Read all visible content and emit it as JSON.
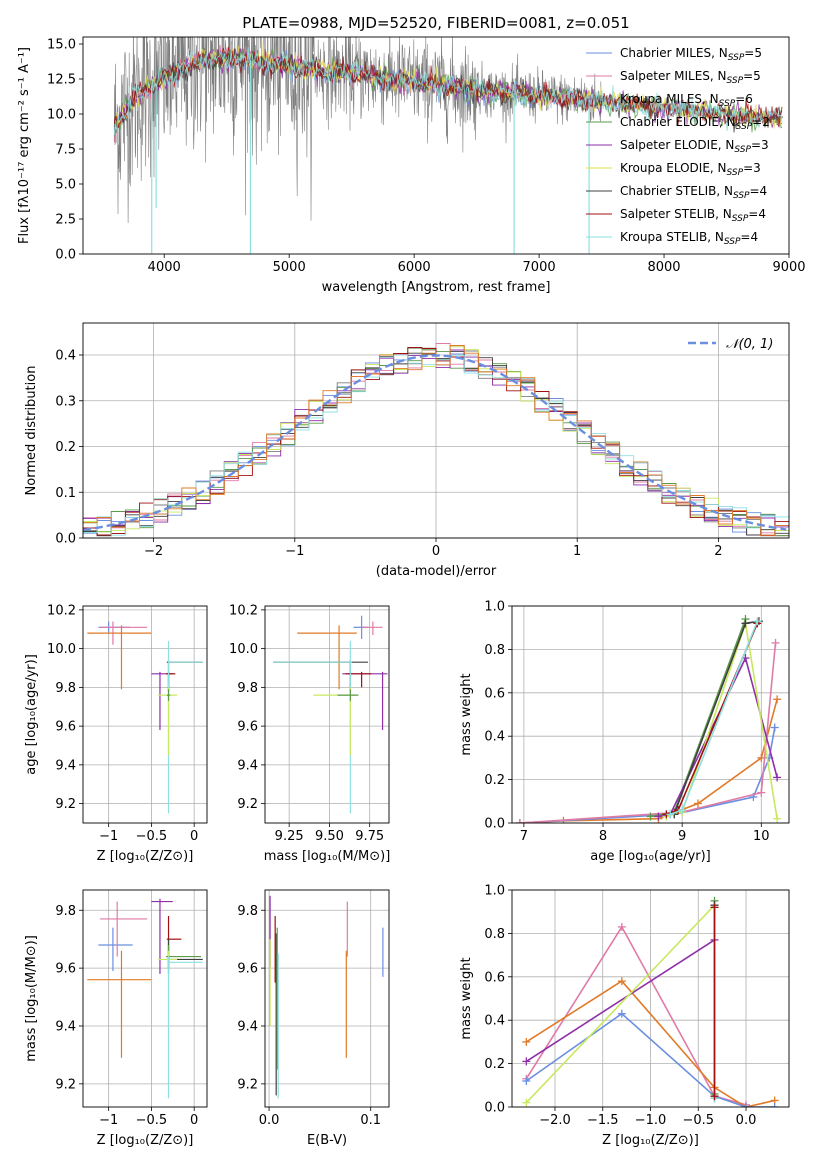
{
  "figure": {
    "title": "PLATE=0988, MJD=52520, FIBERID=0081, z=0.051"
  },
  "colors": {
    "Chabrier MILES": "#6a8fe0",
    "Salpeter MILES": "#e07aa6",
    "Kroupa MILES": "#7e7e7e",
    "Chabrier ELODIE": "#5a9a4a",
    "Salpeter ELODIE": "#8e2fa8",
    "Kroupa ELODIE": "#e6dc4a",
    "Chabrier STELIB": "#404040",
    "Salpeter STELIB": "#a01010",
    "Kroupa STELIB": "#8ee0e0",
    "orange": "#e07a28",
    "lime": "#c8e860"
  },
  "chart_data": [
    {
      "id": "spectrum",
      "type": "line",
      "xlabel": "wavelength [Angstrom, rest frame]",
      "ylabel": "Flux [fλ10⁻¹⁷ erg cm⁻² s⁻¹ A⁻¹]",
      "xlim": [
        3350,
        9000
      ],
      "ylim": [
        0,
        15.5
      ],
      "xticks": [
        4000,
        5000,
        6000,
        7000,
        8000,
        9000
      ],
      "yticks": [
        0.0,
        2.5,
        5.0,
        7.5,
        10.0,
        12.5,
        15.0
      ],
      "legend_position": "top-right",
      "legend": [
        {
          "label": "Chabrier MILES, N",
          "sub": "SSP",
          "tail": "=5"
        },
        {
          "label": "Salpeter MILES, N",
          "sub": "SSP",
          "tail": "=5"
        },
        {
          "label": "Kroupa MILES, N",
          "sub": "SSP",
          "tail": "=6"
        },
        {
          "label": "Chabrier ELODIE, N",
          "sub": "SSP",
          "tail": "=2"
        },
        {
          "label": "Salpeter ELODIE, N",
          "sub": "SSP",
          "tail": "=3"
        },
        {
          "label": "Kroupa ELODIE, N",
          "sub": "SSP",
          "tail": "=3"
        },
        {
          "label": "Chabrier STELIB, N",
          "sub": "SSP",
          "tail": "=4"
        },
        {
          "label": "Salpeter STELIB, N",
          "sub": "SSP",
          "tail": "=4"
        },
        {
          "label": "Kroupa STELIB, N",
          "sub": "SSP",
          "tail": "=4"
        }
      ],
      "continuum": {
        "x": [
          3600,
          3700,
          3800,
          3900,
          4000,
          4100,
          4200,
          4300,
          4400,
          4500,
          4600,
          4700,
          4800,
          4900,
          5000,
          5200,
          5400,
          5600,
          5800,
          6000,
          6200,
          6400,
          6600,
          6800,
          7000,
          7200,
          7400,
          7600,
          7800,
          8000,
          8200,
          8400,
          8600,
          8800,
          8950
        ],
        "y": [
          9.0,
          10.5,
          11.5,
          12.0,
          12.5,
          13.0,
          13.4,
          13.8,
          14.0,
          14.0,
          14.0,
          13.8,
          13.7,
          13.6,
          13.5,
          13.2,
          13.0,
          12.8,
          12.5,
          12.3,
          12.0,
          11.8,
          11.6,
          11.5,
          11.3,
          11.1,
          11.0,
          10.8,
          10.6,
          10.4,
          10.3,
          10.1,
          9.9,
          9.8,
          9.6
        ]
      },
      "dips": [
        {
          "x": 3900,
          "y": 0.0
        },
        {
          "x": 3935,
          "y": 3.3
        },
        {
          "x": 4690,
          "y": 0.0
        },
        {
          "x": 6800,
          "y": 0.0
        },
        {
          "x": 7400,
          "y": 0.0
        }
      ]
    },
    {
      "id": "residuals",
      "type": "line",
      "xlabel": "(data-model)/error",
      "ylabel": "Normed distribution",
      "xlim": [
        -2.5,
        2.5
      ],
      "ylim": [
        0,
        0.47
      ],
      "xticks": [
        -2,
        -1,
        0,
        1,
        2
      ],
      "yticks": [
        0.0,
        0.1,
        0.2,
        0.3,
        0.4
      ],
      "legend_position": "top-right",
      "legend_label": "𝒩(0, 1)",
      "gaussian": {
        "mu": 0,
        "sigma": 1
      }
    },
    {
      "id": "age-vs-Z",
      "type": "scatter",
      "xlabel": "Z [log₁₀(Z/Z⊙)]",
      "ylabel": "age  [log₁₀(age/yr)]",
      "xlim": [
        -1.3,
        0.15
      ],
      "ylim": [
        9.1,
        10.22
      ],
      "xticks": [
        -1,
        -0.5,
        0
      ],
      "xticklabels": [
        "−1",
        "−0.5",
        "0"
      ],
      "yticks": [
        9.2,
        9.4,
        9.6,
        9.8,
        10.0,
        10.2
      ],
      "points": [
        {
          "c": "Chabrier MILES",
          "x": -1.0,
          "y": 10.11,
          "xlo": -1.12,
          "xhi": -0.75,
          "ylo": 10.08,
          "yhi": 10.14
        },
        {
          "c": "Salpeter MILES",
          "x": -0.95,
          "y": 10.11,
          "xlo": -1.1,
          "xhi": -0.55,
          "ylo": 10.02,
          "yhi": 10.14
        },
        {
          "c": "orange",
          "x": -0.85,
          "y": 10.08,
          "xlo": -1.25,
          "xhi": -0.5,
          "ylo": 9.79,
          "yhi": 10.12
        },
        {
          "c": "Salpeter ELODIE",
          "x": -0.4,
          "y": 9.87,
          "xlo": -0.5,
          "xhi": -0.25,
          "ylo": 9.58,
          "yhi": 9.88
        },
        {
          "c": "Chabrier STELIB",
          "x": -0.3,
          "y": 9.93,
          "xlo": -0.32,
          "xhi": 0.1,
          "ylo": 9.78,
          "yhi": 9.94
        },
        {
          "c": "Salpeter STELIB",
          "x": -0.3,
          "y": 9.87,
          "xlo": -0.33,
          "xhi": -0.22,
          "ylo": 9.78,
          "yhi": 9.88
        },
        {
          "c": "Kroupa STELIB",
          "x": -0.3,
          "y": 9.93,
          "xlo": -0.3,
          "xhi": 0.1,
          "ylo": 9.15,
          "yhi": 10.04
        },
        {
          "c": "lime",
          "x": -0.3,
          "y": 9.76,
          "xlo": -0.42,
          "xhi": -0.2,
          "ylo": 9.45,
          "yhi": 9.8
        },
        {
          "c": "Chabrier ELODIE",
          "x": -0.3,
          "y": 9.76,
          "xlo": -0.32,
          "xhi": -0.28,
          "ylo": 9.73,
          "yhi": 9.79
        }
      ]
    },
    {
      "id": "age-vs-mass",
      "type": "scatter",
      "xlabel": "mass [log₁₀(M/M⊙)]",
      "ylabel": "",
      "xlim": [
        9.1,
        9.87
      ],
      "ylim": [
        9.1,
        10.22
      ],
      "xticks": [
        9.25,
        9.5,
        9.75
      ],
      "xticklabels": [
        "9.25",
        "9.50",
        "9.75"
      ],
      "yticks": [
        9.2,
        9.4,
        9.6,
        9.8,
        10.0,
        10.2
      ],
      "points": [
        {
          "c": "Chabrier MILES",
          "x": 9.7,
          "y": 10.11,
          "xlo": 9.65,
          "xhi": 9.74,
          "ylo": 10.05,
          "yhi": 10.17
        },
        {
          "c": "Salpeter MILES",
          "x": 9.77,
          "y": 10.11,
          "xlo": 9.7,
          "xhi": 9.83,
          "ylo": 10.07,
          "yhi": 10.14
        },
        {
          "c": "orange",
          "x": 9.56,
          "y": 10.08,
          "xlo": 9.3,
          "xhi": 9.67,
          "ylo": 9.79,
          "yhi": 10.12
        },
        {
          "c": "Salpeter ELODIE",
          "x": 9.83,
          "y": 9.87,
          "xlo": 9.58,
          "xhi": 9.86,
          "ylo": 9.58,
          "yhi": 9.88
        },
        {
          "c": "Chabrier STELIB",
          "x": 9.63,
          "y": 9.93,
          "xlo": 9.15,
          "xhi": 9.74,
          "ylo": 9.78,
          "yhi": 9.94
        },
        {
          "c": "Salpeter STELIB",
          "x": 9.7,
          "y": 9.87,
          "xlo": 9.6,
          "xhi": 9.76,
          "ylo": 9.8,
          "yhi": 9.88
        },
        {
          "c": "Kroupa STELIB",
          "x": 9.63,
          "y": 9.93,
          "xlo": 9.15,
          "xhi": 9.64,
          "ylo": 9.15,
          "yhi": 10.04
        },
        {
          "c": "lime",
          "x": 9.63,
          "y": 9.76,
          "xlo": 9.4,
          "xhi": 9.66,
          "ylo": 9.45,
          "yhi": 9.8
        },
        {
          "c": "Chabrier ELODIE",
          "x": 9.63,
          "y": 9.76,
          "xlo": 9.55,
          "xhi": 9.68,
          "ylo": 9.73,
          "yhi": 9.79
        }
      ]
    },
    {
      "id": "weight-vs-age",
      "type": "line",
      "xlabel": "age  [log₁₀(age/yr)]",
      "ylabel": "mass weight",
      "xlim": [
        6.85,
        10.35
      ],
      "ylim": [
        0,
        1.0
      ],
      "xticks": [
        7,
        8,
        9,
        10
      ],
      "yticks": [
        0.0,
        0.2,
        0.4,
        0.6,
        0.8,
        1.0
      ],
      "series": [
        {
          "c": "orange",
          "x": [
            6.95,
            7.5,
            8.7,
            9.2,
            10.0,
            10.2
          ],
          "y": [
            0.0,
            0.01,
            0.02,
            0.09,
            0.3,
            0.57
          ]
        },
        {
          "c": "Chabrier MILES",
          "x": [
            6.95,
            8.9,
            9.9,
            10.1,
            10.17
          ],
          "y": [
            0.0,
            0.04,
            0.12,
            0.3,
            0.44
          ]
        },
        {
          "c": "Salpeter MILES",
          "x": [
            6.95,
            9.0,
            10.0,
            10.18
          ],
          "y": [
            0.0,
            0.05,
            0.14,
            0.83
          ]
        },
        {
          "c": "Chabrier ELODIE",
          "x": [
            8.6,
            8.9,
            9.8
          ],
          "y": [
            0.03,
            0.05,
            0.94
          ]
        },
        {
          "c": "Salpeter ELODIE",
          "x": [
            8.7,
            8.85,
            9.8,
            10.2
          ],
          "y": [
            0.03,
            0.04,
            0.76,
            0.21
          ]
        },
        {
          "c": "lime",
          "x": [
            8.8,
            9.0,
            9.8,
            10.2
          ],
          "y": [
            0.03,
            0.05,
            0.92,
            0.02
          ]
        },
        {
          "c": "Chabrier STELIB",
          "x": [
            8.9,
            9.8,
            9.97
          ],
          "y": [
            0.04,
            0.92,
            0.93
          ]
        },
        {
          "c": "Salpeter STELIB",
          "x": [
            8.8,
            8.95,
            9.95
          ],
          "y": [
            0.04,
            0.06,
            0.92
          ]
        },
        {
          "c": "Kroupa STELIB",
          "x": [
            8.85,
            9.0,
            9.95
          ],
          "y": [
            0.04,
            0.06,
            0.93
          ]
        }
      ]
    },
    {
      "id": "mass-vs-Z",
      "type": "scatter",
      "xlabel": "Z [log₁₀(Z/Z⊙)]",
      "ylabel": "mass [log₁₀(M/M⊙)]",
      "xlim": [
        -1.3,
        0.15
      ],
      "ylim": [
        9.12,
        9.87
      ],
      "xticks": [
        -1,
        -0.5,
        0
      ],
      "xticklabels": [
        "−1",
        "−0.5",
        "0"
      ],
      "yticks": [
        9.2,
        9.4,
        9.6,
        9.8
      ],
      "points": [
        {
          "c": "Chabrier MILES",
          "x": -0.95,
          "y": 9.68,
          "xlo": -1.12,
          "xhi": -0.72,
          "ylo": 9.59,
          "yhi": 9.74
        },
        {
          "c": "Salpeter MILES",
          "x": -0.9,
          "y": 9.77,
          "xlo": -1.1,
          "xhi": -0.55,
          "ylo": 9.64,
          "yhi": 9.83
        },
        {
          "c": "orange",
          "x": -0.85,
          "y": 9.56,
          "xlo": -1.25,
          "xhi": -0.5,
          "ylo": 9.29,
          "yhi": 9.66
        },
        {
          "c": "Salpeter ELODIE",
          "x": -0.4,
          "y": 9.83,
          "xlo": -0.5,
          "xhi": -0.25,
          "ylo": 9.58,
          "yhi": 9.84
        },
        {
          "c": "Salpeter STELIB",
          "x": -0.3,
          "y": 9.7,
          "xlo": -0.32,
          "xhi": -0.15,
          "ylo": 9.6,
          "yhi": 9.78
        },
        {
          "c": "Chabrier STELIB",
          "x": -0.3,
          "y": 9.63,
          "xlo": -0.32,
          "xhi": 0.1,
          "ylo": 9.58,
          "yhi": 9.7
        },
        {
          "c": "Chabrier ELODIE",
          "x": -0.3,
          "y": 9.64,
          "xlo": -0.33,
          "xhi": 0.08,
          "ylo": 9.6,
          "yhi": 9.68
        },
        {
          "c": "lime",
          "x": -0.3,
          "y": 9.63,
          "xlo": -0.42,
          "xhi": -0.2,
          "ylo": 9.4,
          "yhi": 9.66
        },
        {
          "c": "Kroupa STELIB",
          "x": -0.3,
          "y": 9.62,
          "xlo": -0.3,
          "xhi": 0.1,
          "ylo": 9.15,
          "yhi": 9.64
        }
      ]
    },
    {
      "id": "mass-vs-EBV",
      "type": "scatter",
      "xlabel": "E(B-V)",
      "ylabel": "",
      "xlim": [
        -0.004,
        0.118
      ],
      "ylim": [
        9.12,
        9.87
      ],
      "xticks": [
        0.0,
        0.1
      ],
      "xticklabels": [
        "0.0",
        "0.1"
      ],
      "yticks": [
        9.2,
        9.4,
        9.6,
        9.8
      ],
      "points": [
        {
          "c": "Chabrier MILES",
          "x": 0.112,
          "y": 9.66,
          "xlo": 0.112,
          "xhi": 0.112,
          "ylo": 9.57,
          "yhi": 9.74
        },
        {
          "c": "Salpeter MILES",
          "x": 0.077,
          "y": 9.73,
          "xlo": 0.077,
          "xhi": 0.077,
          "ylo": 9.64,
          "yhi": 9.83
        },
        {
          "c": "orange",
          "x": 0.076,
          "y": 9.56,
          "xlo": 0.076,
          "xhi": 0.076,
          "ylo": 9.29,
          "yhi": 9.66
        },
        {
          "c": "Salpeter ELODIE",
          "x": 0.001,
          "y": 9.83,
          "xlo": 0.001,
          "xhi": 0.001,
          "ylo": 9.6,
          "yhi": 9.85
        },
        {
          "c": "lime",
          "x": 0.001,
          "y": 9.6,
          "xlo": 0.001,
          "xhi": 0.001,
          "ylo": 9.4,
          "yhi": 9.7
        },
        {
          "c": "Salpeter STELIB",
          "x": 0.006,
          "y": 9.7,
          "xlo": 0.006,
          "xhi": 0.006,
          "ylo": 9.55,
          "yhi": 9.78
        },
        {
          "c": "Chabrier STELIB",
          "x": 0.007,
          "y": 9.6,
          "xlo": 0.007,
          "xhi": 0.007,
          "ylo": 9.16,
          "yhi": 9.72
        },
        {
          "c": "Chabrier ELODIE",
          "x": 0.008,
          "y": 9.62,
          "xlo": 0.008,
          "xhi": 0.008,
          "ylo": 9.25,
          "yhi": 9.74
        },
        {
          "c": "Kroupa STELIB",
          "x": 0.009,
          "y": 9.6,
          "xlo": 0.009,
          "xhi": 0.009,
          "ylo": 9.15,
          "yhi": 9.65
        }
      ]
    },
    {
      "id": "weight-vs-Z",
      "type": "line",
      "xlabel": "Z [log₁₀(Z/Z⊙)]",
      "ylabel": "mass weight",
      "xlim": [
        -2.45,
        0.45
      ],
      "ylim": [
        0,
        1.0
      ],
      "xticks": [
        -2.0,
        -1.5,
        -1.0,
        -0.5,
        0.0
      ],
      "xticklabels": [
        "−2.0",
        "−1.5",
        "−1.0",
        "−0.5",
        "0.0"
      ],
      "yticks": [
        0.0,
        0.2,
        0.4,
        0.6,
        0.8,
        1.0
      ],
      "series": [
        {
          "c": "Salpeter MILES",
          "x": [
            -2.3,
            -1.3,
            -0.33,
            0.0
          ],
          "y": [
            0.13,
            0.83,
            0.05,
            0.01
          ]
        },
        {
          "c": "orange",
          "x": [
            -2.3,
            -1.3,
            -0.33,
            0.0,
            0.3
          ],
          "y": [
            0.3,
            0.58,
            0.09,
            0.0,
            0.03
          ]
        },
        {
          "c": "Chabrier MILES",
          "x": [
            -2.3,
            -1.3,
            -0.33,
            0.0,
            0.3
          ],
          "y": [
            0.12,
            0.43,
            0.05,
            0.0,
            0.0
          ]
        },
        {
          "c": "Salpeter ELODIE",
          "x": [
            -2.3,
            -0.33
          ],
          "y": [
            0.21,
            0.77
          ]
        },
        {
          "c": "lime",
          "x": [
            -2.3,
            -0.33
          ],
          "y": [
            0.02,
            0.93
          ]
        },
        {
          "c": "Chabrier ELODIE",
          "x": [
            -0.33,
            -0.33
          ],
          "y": [
            0.06,
            0.95
          ]
        },
        {
          "c": "Chabrier STELIB",
          "x": [
            -0.33,
            -0.33
          ],
          "y": [
            0.04,
            0.93
          ]
        },
        {
          "c": "Kroupa STELIB",
          "x": [
            -0.33,
            -0.33
          ],
          "y": [
            0.04,
            0.92
          ]
        },
        {
          "c": "Salpeter STELIB",
          "x": [
            -0.33,
            -0.33
          ],
          "y": [
            0.05,
            0.92
          ]
        }
      ]
    }
  ]
}
